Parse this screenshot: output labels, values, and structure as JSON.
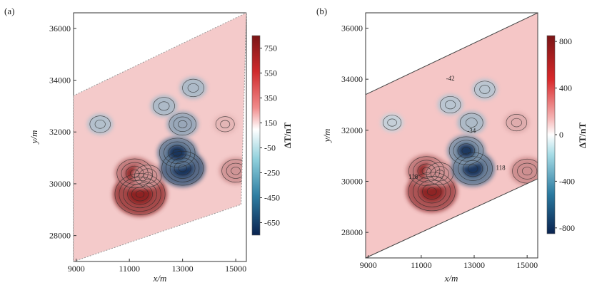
{
  "chart_data": [
    {
      "panel": "(a)",
      "type": "heatmap",
      "xlabel": "x/m",
      "ylabel": "y/m",
      "xticks": [
        9000,
        11000,
        13000,
        15000
      ],
      "yticks": [
        28000,
        30000,
        32000,
        34000,
        36000
      ],
      "xlim": [
        8900,
        15400
      ],
      "ylim": [
        27000,
        36600
      ],
      "colorbar": {
        "label": "ΔT/nT",
        "ticks": [
          750,
          550,
          350,
          150,
          -50,
          -250,
          -450,
          -650
        ],
        "range": [
          -750,
          850
        ],
        "low_color": "#0c2a55",
        "mid_color": "#ffffff",
        "high_color": "#8a1b1e"
      },
      "domain_polygon": [
        [
          8900,
          27000
        ],
        [
          15200,
          29200
        ],
        [
          15400,
          36600
        ],
        [
          8900,
          33400
        ]
      ],
      "features": [
        {
          "x": 11400,
          "y": 29600,
          "value": 700
        },
        {
          "x": 11200,
          "y": 30400,
          "value": 450
        },
        {
          "x": 11700,
          "y": 30300,
          "value": 300
        },
        {
          "x": 13000,
          "y": 30600,
          "value": -550
        },
        {
          "x": 12800,
          "y": 31200,
          "value": -450
        },
        {
          "x": 13000,
          "y": 32300,
          "value": -300
        },
        {
          "x": 12300,
          "y": 33000,
          "value": -220
        },
        {
          "x": 13400,
          "y": 33700,
          "value": -220
        },
        {
          "x": 9900,
          "y": 32300,
          "value": -200
        },
        {
          "x": 15000,
          "y": 30500,
          "value": 320
        },
        {
          "x": 14600,
          "y": 32300,
          "value": 160
        }
      ]
    },
    {
      "panel": "(b)",
      "type": "heatmap",
      "xlabel": "x/m",
      "ylabel": "y/m",
      "xticks": [
        9000,
        11000,
        13000,
        15000
      ],
      "yticks": [
        28000,
        30000,
        32000,
        34000,
        36000
      ],
      "xlim": [
        8900,
        15400
      ],
      "ylim": [
        27000,
        36600
      ],
      "colorbar": {
        "label": "ΔT/nT",
        "ticks": [
          800,
          400,
          0,
          -400,
          -800
        ],
        "range": [
          -850,
          850
        ],
        "low_color": "#0c2a55",
        "mid_color": "#ffffff",
        "high_color": "#8a1b1e"
      },
      "domain_polygon": [
        [
          8900,
          27000
        ],
        [
          15400,
          30100
        ],
        [
          15400,
          36600
        ],
        [
          8900,
          33400
        ]
      ],
      "annotations": [
        {
          "text": "-42",
          "x": 12100,
          "y": 33950
        },
        {
          "text": "-34",
          "x": 12900,
          "y": 31900
        },
        {
          "text": "118",
          "x": 10700,
          "y": 30100
        },
        {
          "text": "118",
          "x": 14000,
          "y": 30450
        }
      ],
      "features": [
        {
          "x": 11400,
          "y": 29600,
          "value": 650
        },
        {
          "x": 11200,
          "y": 30400,
          "value": 450
        },
        {
          "x": 11700,
          "y": 30300,
          "value": 300
        },
        {
          "x": 12950,
          "y": 30500,
          "value": -520
        },
        {
          "x": 12700,
          "y": 31200,
          "value": -420
        },
        {
          "x": 12900,
          "y": 32300,
          "value": -250
        },
        {
          "x": 12100,
          "y": 33000,
          "value": -200
        },
        {
          "x": 13400,
          "y": 33600,
          "value": -200
        },
        {
          "x": 9900,
          "y": 32300,
          "value": -150
        },
        {
          "x": 15000,
          "y": 30400,
          "value": 350
        },
        {
          "x": 14600,
          "y": 32300,
          "value": 200
        }
      ]
    }
  ]
}
